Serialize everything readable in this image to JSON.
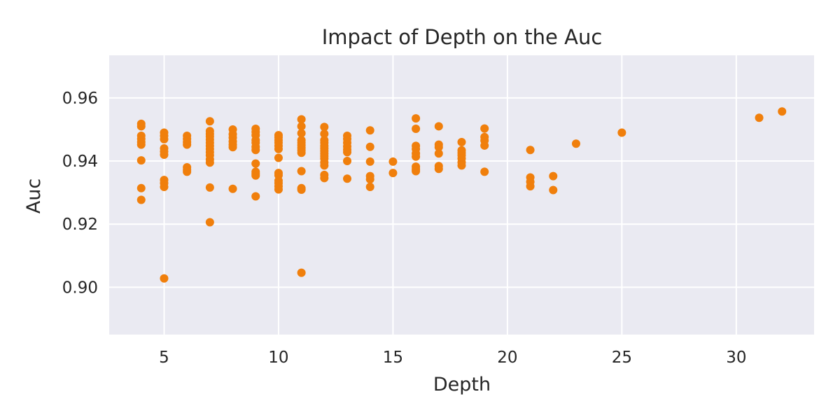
{
  "chart_data": {
    "type": "scatter",
    "title": "Impact of Depth on the Auc",
    "xlabel": "Depth",
    "ylabel": "Auc",
    "xlim": [
      2.6,
      33.4
    ],
    "ylim": [
      0.885,
      0.9735
    ],
    "xticks": [
      5,
      10,
      15,
      20,
      25,
      30
    ],
    "yticks": [
      0.9,
      0.92,
      0.94,
      0.96
    ],
    "xtick_labels": [
      "5",
      "10",
      "15",
      "20",
      "25",
      "30"
    ],
    "ytick_labels": [
      "0.90",
      "0.92",
      "0.94",
      "0.96"
    ],
    "grid": true,
    "background_color": "#eaeaf2",
    "marker_color": "#f07f0c",
    "points": [
      {
        "x": 4,
        "y": 0.9518
      },
      {
        "x": 4,
        "y": 0.951
      },
      {
        "x": 4,
        "y": 0.948
      },
      {
        "x": 4,
        "y": 0.947
      },
      {
        "x": 4,
        "y": 0.946
      },
      {
        "x": 4,
        "y": 0.9452
      },
      {
        "x": 4,
        "y": 0.9402
      },
      {
        "x": 4,
        "y": 0.9314
      },
      {
        "x": 4,
        "y": 0.9277
      },
      {
        "x": 5,
        "y": 0.949
      },
      {
        "x": 5,
        "y": 0.948
      },
      {
        "x": 5,
        "y": 0.9469
      },
      {
        "x": 5,
        "y": 0.944
      },
      {
        "x": 5,
        "y": 0.943
      },
      {
        "x": 5,
        "y": 0.942
      },
      {
        "x": 5,
        "y": 0.934
      },
      {
        "x": 5,
        "y": 0.933
      },
      {
        "x": 5,
        "y": 0.9318
      },
      {
        "x": 5,
        "y": 0.9028
      },
      {
        "x": 6,
        "y": 0.948
      },
      {
        "x": 6,
        "y": 0.947
      },
      {
        "x": 6,
        "y": 0.946
      },
      {
        "x": 6,
        "y": 0.9452
      },
      {
        "x": 6,
        "y": 0.938
      },
      {
        "x": 6,
        "y": 0.9372
      },
      {
        "x": 6,
        "y": 0.9366
      },
      {
        "x": 7,
        "y": 0.9526
      },
      {
        "x": 7,
        "y": 0.9495
      },
      {
        "x": 7,
        "y": 0.9486
      },
      {
        "x": 7,
        "y": 0.9478
      },
      {
        "x": 7,
        "y": 0.9468
      },
      {
        "x": 7,
        "y": 0.9458
      },
      {
        "x": 7,
        "y": 0.9448
      },
      {
        "x": 7,
        "y": 0.9438
      },
      {
        "x": 7,
        "y": 0.9428
      },
      {
        "x": 7,
        "y": 0.9418
      },
      {
        "x": 7,
        "y": 0.9405
      },
      {
        "x": 7,
        "y": 0.9395
      },
      {
        "x": 7,
        "y": 0.9316
      },
      {
        "x": 7,
        "y": 0.9206
      },
      {
        "x": 8,
        "y": 0.95
      },
      {
        "x": 8,
        "y": 0.9485
      },
      {
        "x": 8,
        "y": 0.9474
      },
      {
        "x": 8,
        "y": 0.9462
      },
      {
        "x": 8,
        "y": 0.9452
      },
      {
        "x": 8,
        "y": 0.9444
      },
      {
        "x": 8,
        "y": 0.9312
      },
      {
        "x": 9,
        "y": 0.9502
      },
      {
        "x": 9,
        "y": 0.9492
      },
      {
        "x": 9,
        "y": 0.9482
      },
      {
        "x": 9,
        "y": 0.9466
      },
      {
        "x": 9,
        "y": 0.9458
      },
      {
        "x": 9,
        "y": 0.9445
      },
      {
        "x": 9,
        "y": 0.9435
      },
      {
        "x": 9,
        "y": 0.9392
      },
      {
        "x": 9,
        "y": 0.9366
      },
      {
        "x": 9,
        "y": 0.936
      },
      {
        "x": 9,
        "y": 0.9354
      },
      {
        "x": 9,
        "y": 0.9288
      },
      {
        "x": 10,
        "y": 0.9482
      },
      {
        "x": 10,
        "y": 0.9475
      },
      {
        "x": 10,
        "y": 0.9466
      },
      {
        "x": 10,
        "y": 0.9458
      },
      {
        "x": 10,
        "y": 0.9448
      },
      {
        "x": 10,
        "y": 0.9438
      },
      {
        "x": 10,
        "y": 0.941
      },
      {
        "x": 10,
        "y": 0.9362
      },
      {
        "x": 10,
        "y": 0.9355
      },
      {
        "x": 10,
        "y": 0.9338
      },
      {
        "x": 10,
        "y": 0.933
      },
      {
        "x": 10,
        "y": 0.932
      },
      {
        "x": 10,
        "y": 0.931
      },
      {
        "x": 11,
        "y": 0.9532
      },
      {
        "x": 11,
        "y": 0.951
      },
      {
        "x": 11,
        "y": 0.9488
      },
      {
        "x": 11,
        "y": 0.9466
      },
      {
        "x": 11,
        "y": 0.9458
      },
      {
        "x": 11,
        "y": 0.945
      },
      {
        "x": 11,
        "y": 0.9442
      },
      {
        "x": 11,
        "y": 0.9434
      },
      {
        "x": 11,
        "y": 0.9426
      },
      {
        "x": 11,
        "y": 0.9368
      },
      {
        "x": 11,
        "y": 0.9314
      },
      {
        "x": 11,
        "y": 0.9309
      },
      {
        "x": 11,
        "y": 0.9046
      },
      {
        "x": 12,
        "y": 0.9508
      },
      {
        "x": 12,
        "y": 0.9486
      },
      {
        "x": 12,
        "y": 0.9466
      },
      {
        "x": 12,
        "y": 0.9458
      },
      {
        "x": 12,
        "y": 0.9448
      },
      {
        "x": 12,
        "y": 0.944
      },
      {
        "x": 12,
        "y": 0.9432
      },
      {
        "x": 12,
        "y": 0.9424
      },
      {
        "x": 12,
        "y": 0.9416
      },
      {
        "x": 12,
        "y": 0.9408
      },
      {
        "x": 12,
        "y": 0.9396
      },
      {
        "x": 12,
        "y": 0.9386
      },
      {
        "x": 12,
        "y": 0.9356
      },
      {
        "x": 12,
        "y": 0.9346
      },
      {
        "x": 13,
        "y": 0.948
      },
      {
        "x": 13,
        "y": 0.947
      },
      {
        "x": 13,
        "y": 0.9458
      },
      {
        "x": 13,
        "y": 0.9446
      },
      {
        "x": 13,
        "y": 0.9436
      },
      {
        "x": 13,
        "y": 0.9428
      },
      {
        "x": 13,
        "y": 0.94
      },
      {
        "x": 13,
        "y": 0.9344
      },
      {
        "x": 14,
        "y": 0.9497
      },
      {
        "x": 14,
        "y": 0.9445
      },
      {
        "x": 14,
        "y": 0.9398
      },
      {
        "x": 14,
        "y": 0.9352
      },
      {
        "x": 14,
        "y": 0.9342
      },
      {
        "x": 14,
        "y": 0.9318
      },
      {
        "x": 15,
        "y": 0.9398
      },
      {
        "x": 15,
        "y": 0.9362
      },
      {
        "x": 16,
        "y": 0.9535
      },
      {
        "x": 16,
        "y": 0.9502
      },
      {
        "x": 16,
        "y": 0.9448
      },
      {
        "x": 16,
        "y": 0.9438
      },
      {
        "x": 16,
        "y": 0.9424
      },
      {
        "x": 16,
        "y": 0.9414
      },
      {
        "x": 16,
        "y": 0.9382
      },
      {
        "x": 16,
        "y": 0.9374
      },
      {
        "x": 16,
        "y": 0.9368
      },
      {
        "x": 17,
        "y": 0.951
      },
      {
        "x": 17,
        "y": 0.9452
      },
      {
        "x": 17,
        "y": 0.9444
      },
      {
        "x": 17,
        "y": 0.9424
      },
      {
        "x": 17,
        "y": 0.9384
      },
      {
        "x": 17,
        "y": 0.9375
      },
      {
        "x": 18,
        "y": 0.946
      },
      {
        "x": 18,
        "y": 0.9434
      },
      {
        "x": 18,
        "y": 0.9426
      },
      {
        "x": 18,
        "y": 0.9418
      },
      {
        "x": 18,
        "y": 0.9408
      },
      {
        "x": 18,
        "y": 0.9396
      },
      {
        "x": 18,
        "y": 0.9386
      },
      {
        "x": 19,
        "y": 0.9503
      },
      {
        "x": 19,
        "y": 0.9476
      },
      {
        "x": 19,
        "y": 0.9465
      },
      {
        "x": 19,
        "y": 0.9449
      },
      {
        "x": 19,
        "y": 0.9366
      },
      {
        "x": 21,
        "y": 0.9435
      },
      {
        "x": 21,
        "y": 0.9348
      },
      {
        "x": 21,
        "y": 0.9334
      },
      {
        "x": 21,
        "y": 0.932
      },
      {
        "x": 22,
        "y": 0.9352
      },
      {
        "x": 22,
        "y": 0.9308
      },
      {
        "x": 23,
        "y": 0.9455
      },
      {
        "x": 25,
        "y": 0.949
      },
      {
        "x": 31,
        "y": 0.9537
      },
      {
        "x": 32,
        "y": 0.9557
      }
    ]
  }
}
